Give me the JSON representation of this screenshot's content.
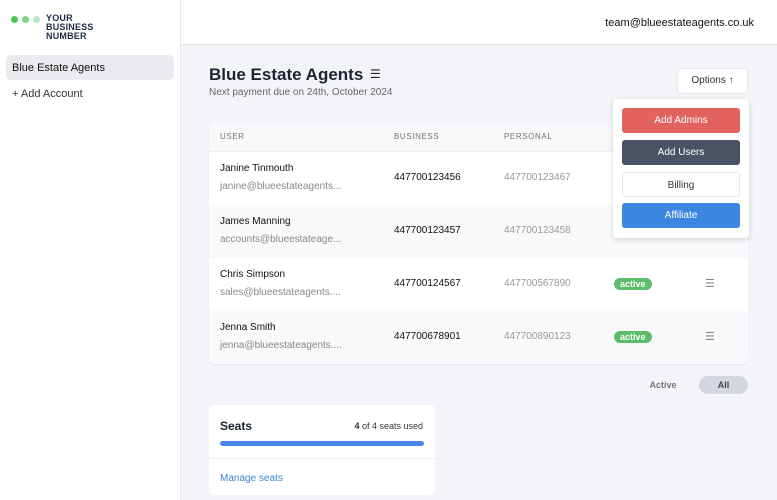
{
  "brand": {
    "line1": "YOUR",
    "line2": "BUSINESS",
    "line3": "NUMBER",
    "dot_colors": [
      "#4cc55a",
      "#7fd487",
      "#b7e6bc"
    ]
  },
  "sidebar": {
    "items": [
      {
        "label": "Blue Estate Agents",
        "active": true
      },
      {
        "label": "+ Add Account"
      }
    ]
  },
  "header": {
    "email": "team@blueestateagents.co.uk"
  },
  "page": {
    "title": "Blue Estate Agents",
    "subtitle": "Next payment due on 24th, October 2024",
    "edit_icon": "edit-list-icon"
  },
  "options": {
    "label": "Options ↑",
    "menu": [
      {
        "label": "Add Admins",
        "color": "#e2635e"
      },
      {
        "label": "Add Users",
        "color": "#4a5366"
      },
      {
        "label": "Billing",
        "color": "#ffffff"
      },
      {
        "label": "Affiliate",
        "color": "#3a86e0"
      }
    ]
  },
  "table": {
    "columns": [
      "USER",
      "BUSINESS",
      "PERSONAL"
    ],
    "rows": [
      {
        "name": "Janine Tinmouth",
        "email": "janine@blueestateagents...",
        "business": "447700123456",
        "personal": "447700123467",
        "status": ""
      },
      {
        "name": "James Manning",
        "email": "accounts@blueestateage...",
        "business": "447700123457",
        "personal": "447700123458",
        "status": ""
      },
      {
        "name": "Chris Simpson",
        "email": "sales@blueestateagents....",
        "business": "447700124567",
        "personal": "447700567890",
        "status": "active"
      },
      {
        "name": "Jenna Smith",
        "email": "jenna@blueestateagents....",
        "business": "447700678901",
        "personal": "447700890123",
        "status": "active"
      }
    ]
  },
  "filters": {
    "active": "Active",
    "all": "All",
    "selected": "All"
  },
  "seats": {
    "title": "Seats",
    "used": "4",
    "used_suffix": " of 4 seats used",
    "fraction": 1.0,
    "manage": "Manage seats"
  }
}
